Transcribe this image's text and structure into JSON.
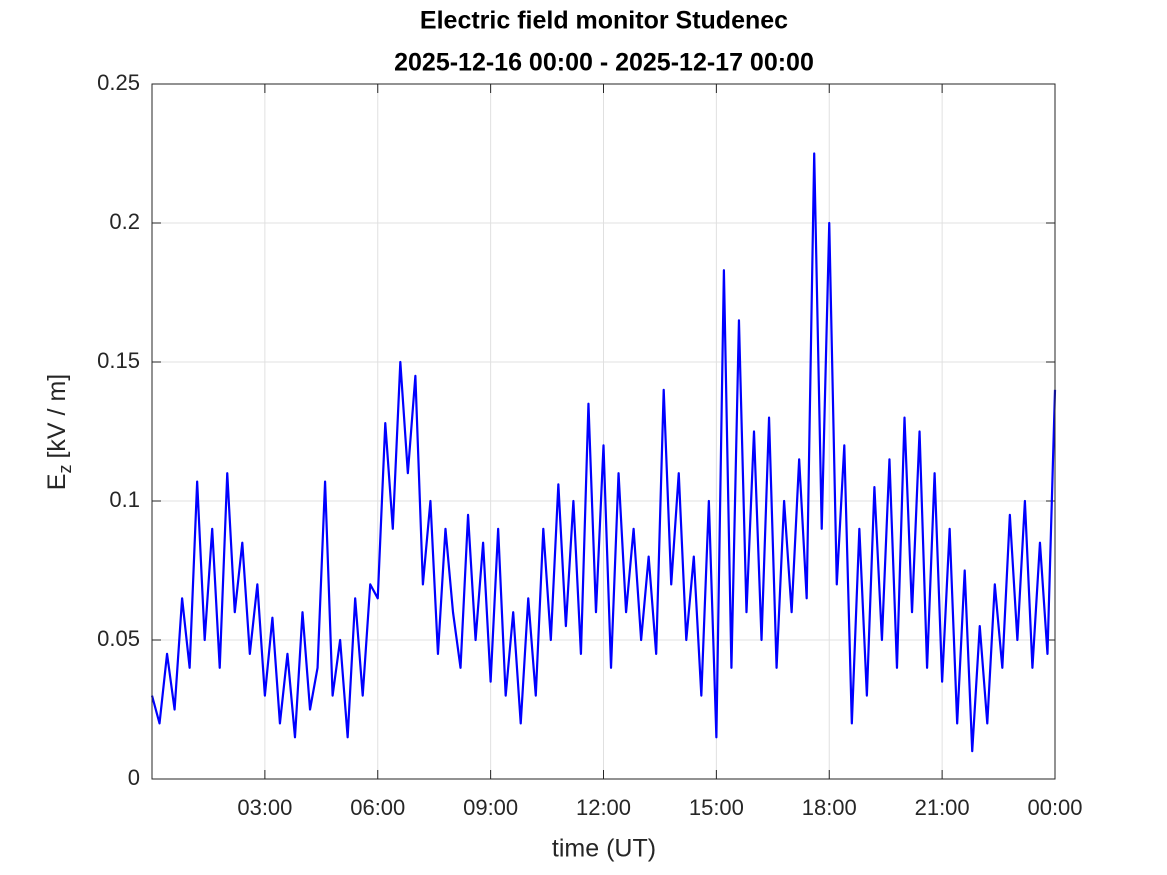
{
  "chart_data": {
    "type": "line",
    "title": "Electric field monitor Studenec",
    "subtitle": "2025-12-16 00:00 - 2025-12-17 00:00",
    "x_label": "time (UT)",
    "y_label": {
      "main": "E",
      "sub": "z",
      "unit": "[kV / m]"
    },
    "x": [
      0,
      0.2,
      0.4,
      0.6,
      0.8,
      1,
      1.2,
      1.4,
      1.6,
      1.8,
      2,
      2.2,
      2.4,
      2.6,
      2.8,
      3,
      3.2,
      3.4,
      3.6,
      3.8,
      4,
      4.2,
      4.4,
      4.6,
      4.8,
      5,
      5.2,
      5.4,
      5.6,
      5.8,
      6,
      6.2,
      6.4,
      6.6,
      6.8,
      7,
      7.2,
      7.4,
      7.6,
      7.8,
      8,
      8.2,
      8.4,
      8.6,
      8.8,
      9,
      9.2,
      9.4,
      9.6,
      9.8,
      10,
      10.2,
      10.4,
      10.6,
      10.8,
      11,
      11.2,
      11.4,
      11.6,
      11.8,
      12,
      12.2,
      12.4,
      12.6,
      12.8,
      13,
      13.2,
      13.4,
      13.6,
      13.8,
      14,
      14.2,
      14.4,
      14.6,
      14.8,
      15,
      15.2,
      15.4,
      15.6,
      15.8,
      16,
      16.2,
      16.4,
      16.6,
      16.8,
      17,
      17.2,
      17.4,
      17.6,
      17.8,
      18,
      18.2,
      18.4,
      18.6,
      18.8,
      19,
      19.2,
      19.4,
      19.6,
      19.8,
      20,
      20.2,
      20.4,
      20.6,
      20.8,
      21,
      21.2,
      21.4,
      21.6,
      21.8,
      22,
      22.2,
      22.4,
      22.6,
      22.8,
      23,
      23.2,
      23.4,
      23.6,
      23.8,
      24
    ],
    "series": [
      {
        "name": "Ez",
        "color": "#0000ff",
        "values": [
          0.03,
          0.02,
          0.045,
          0.025,
          0.065,
          0.04,
          0.107,
          0.05,
          0.09,
          0.04,
          0.11,
          0.06,
          0.085,
          0.045,
          0.07,
          0.03,
          0.058,
          0.02,
          0.045,
          0.015,
          0.06,
          0.025,
          0.04,
          0.107,
          0.03,
          0.05,
          0.015,
          0.065,
          0.03,
          0.07,
          0.065,
          0.128,
          0.09,
          0.15,
          0.11,
          0.145,
          0.07,
          0.1,
          0.045,
          0.09,
          0.06,
          0.04,
          0.095,
          0.05,
          0.085,
          0.035,
          0.09,
          0.03,
          0.06,
          0.02,
          0.065,
          0.03,
          0.09,
          0.05,
          0.106,
          0.055,
          0.1,
          0.045,
          0.135,
          0.06,
          0.12,
          0.04,
          0.11,
          0.06,
          0.09,
          0.05,
          0.08,
          0.045,
          0.14,
          0.07,
          0.11,
          0.05,
          0.08,
          0.03,
          0.1,
          0.015,
          0.183,
          0.04,
          0.165,
          0.06,
          0.125,
          0.05,
          0.13,
          0.04,
          0.1,
          0.06,
          0.115,
          0.065,
          0.225,
          0.09,
          0.2,
          0.07,
          0.12,
          0.02,
          0.09,
          0.03,
          0.105,
          0.05,
          0.115,
          0.04,
          0.13,
          0.06,
          0.125,
          0.04,
          0.11,
          0.035,
          0.09,
          0.02,
          0.075,
          0.01,
          0.055,
          0.02,
          0.07,
          0.04,
          0.095,
          0.05,
          0.1,
          0.04,
          0.085,
          0.045,
          0.14
        ]
      }
    ],
    "xlim": [
      0,
      24
    ],
    "xticks": [
      {
        "value": 3,
        "label": "03:00"
      },
      {
        "value": 6,
        "label": "06:00"
      },
      {
        "value": 9,
        "label": "09:00"
      },
      {
        "value": 12,
        "label": "12:00"
      },
      {
        "value": 15,
        "label": "15:00"
      },
      {
        "value": 18,
        "label": "18:00"
      },
      {
        "value": 21,
        "label": "21:00"
      },
      {
        "value": 24,
        "label": "00:00"
      }
    ],
    "ylim": [
      0,
      0.25
    ],
    "yticks": [
      0,
      0.05,
      0.1,
      0.15,
      0.2,
      0.25
    ],
    "grid": true
  }
}
